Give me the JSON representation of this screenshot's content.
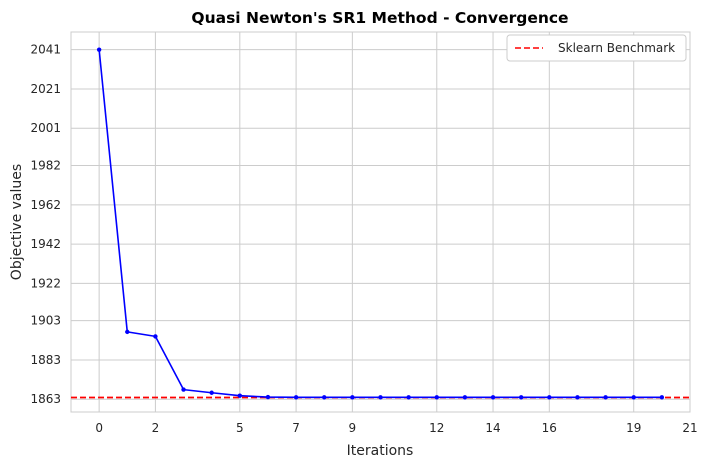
{
  "chart_data": {
    "type": "line",
    "title": "Quasi Newton's SR1 Method - Convergence",
    "xlabel": "Iterations",
    "ylabel": "Objective values",
    "xlim": [
      -1.0,
      21
    ],
    "ylim": [
      1856.5,
      2050
    ],
    "x_ticks": [
      0,
      2,
      5,
      7,
      9,
      12,
      14,
      16,
      19,
      21
    ],
    "y_ticks": [
      1863,
      1883,
      1903,
      1922,
      1942,
      1962,
      1982,
      2001,
      2021,
      2041
    ],
    "grid": true,
    "legend_position": "top-right",
    "series": [
      {
        "name": "",
        "color": "#0000ff",
        "marker": "circle",
        "x": [
          0,
          1,
          2,
          3,
          4,
          5,
          6,
          7,
          8,
          9,
          10,
          11,
          12,
          13,
          14,
          15,
          16,
          17,
          18,
          19,
          20
        ],
        "y": [
          2041.0,
          1897.3,
          1895.0,
          1867.9,
          1866.3,
          1864.8,
          1864.1,
          1864.0,
          1864.0,
          1864.0,
          1864.0,
          1864.0,
          1864.0,
          1864.0,
          1864.0,
          1864.0,
          1864.0,
          1864.0,
          1864.0,
          1864.0,
          1864.0
        ]
      }
    ],
    "reference_lines": [
      {
        "name": "Sklearn Benchmark",
        "y": 1863.9,
        "color": "#ff0000",
        "style": "dashed"
      }
    ]
  }
}
